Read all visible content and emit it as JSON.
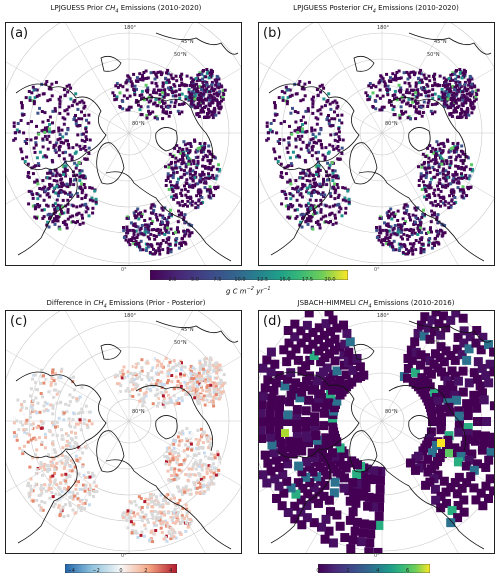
{
  "panels": [
    {
      "letter": "(a)",
      "title_prefix": "LPJGUESS Prior ",
      "title_gas": "CH",
      "title_sub": "4",
      "title_suffix": " Emissions (2010-2020)"
    },
    {
      "letter": "(b)",
      "title_prefix": "LPJGUESS Posterior ",
      "title_gas": "CH",
      "title_sub": "4",
      "title_suffix": " Emissions (2010-2020)"
    },
    {
      "letter": "(c)",
      "title_prefix": "Difference in ",
      "title_gas": "CH",
      "title_sub": "4",
      "title_suffix": " Emissions (Prior - Posterior)"
    },
    {
      "letter": "(d)",
      "title_prefix": "JSBACH-HIMMELI ",
      "title_gas": "CH",
      "title_sub": "4",
      "title_suffix": " Emissions (2010-2016)"
    }
  ],
  "map_labels": {
    "lon_top": "180°",
    "lon_bottom": "0°",
    "lat_45": "45°N",
    "lat_50": "50°N",
    "lat_80": "80°N"
  },
  "colorbars": {
    "emissions": {
      "ticks": [
        "2.5",
        "5.0",
        "7.5",
        "10.0",
        "12.5",
        "15.0",
        "17.5",
        "20.0"
      ],
      "label_main": "g C m",
      "label_exp1": "−2",
      "label_mid": " yr",
      "label_exp2": "−1",
      "range": [
        0,
        22
      ],
      "colormap": "viridis"
    },
    "difference": {
      "ticks": [
        "−4",
        "−2",
        "0",
        "2",
        "4"
      ],
      "range": [
        -4.5,
        4.5
      ],
      "colormap": "RdBu_r"
    },
    "jsbach": {
      "ticks": [
        "0",
        "2",
        "4",
        "6"
      ],
      "range": [
        0,
        7.5
      ],
      "colormap": "viridis"
    }
  },
  "chart_data": [
    {
      "type": "heatmap",
      "projection": "north-polar-stereographic",
      "title": "LPJGUESS Prior CH4 Emissions (2010-2020)",
      "colorbar_range": [
        0,
        22
      ],
      "grid": true
    },
    {
      "type": "heatmap",
      "projection": "north-polar-stereographic",
      "title": "LPJGUESS Posterior CH4 Emissions (2010-2020)",
      "colorbar_range": [
        0,
        22
      ],
      "grid": true
    },
    {
      "type": "heatmap",
      "projection": "north-polar-stereographic",
      "title": "Difference in CH4 Emissions (Prior - Posterior)",
      "colorbar_range": [
        -4.5,
        4.5
      ],
      "grid": true
    },
    {
      "type": "heatmap",
      "projection": "north-polar-stereographic",
      "title": "JSBACH-HIMMELI CH4 Emissions (2010-2016)",
      "colorbar_range": [
        0,
        7.5
      ],
      "grid": true
    }
  ]
}
